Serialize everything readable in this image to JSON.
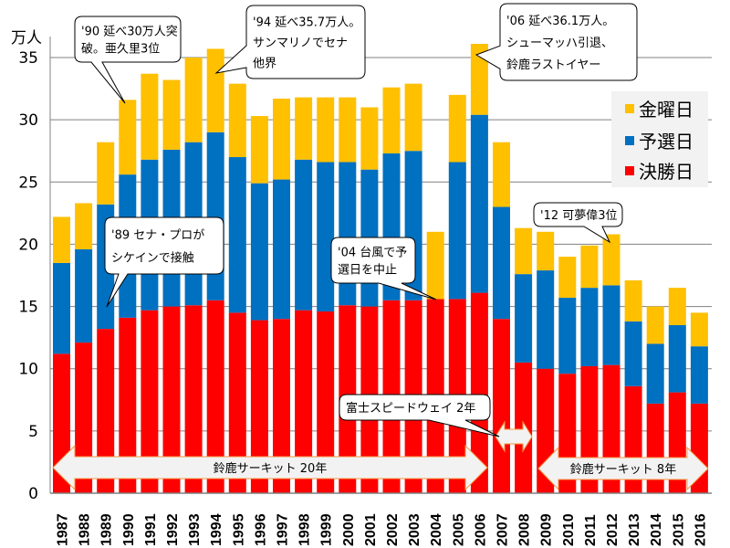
{
  "chart_data": {
    "type": "bar",
    "stacked": true,
    "ylabel": "万人",
    "ylim": [
      0,
      35
    ],
    "yticks": [
      "0",
      "5",
      "10",
      "15",
      "20",
      "25",
      "30",
      "35"
    ],
    "grid": true,
    "legend_placement": "right",
    "categories": [
      "1987",
      "1988",
      "1989",
      "1990",
      "1991",
      "1992",
      "1993",
      "1994",
      "1995",
      "1996",
      "1997",
      "1998",
      "1999",
      "2000",
      "2001",
      "2002",
      "2003",
      "2004",
      "2005",
      "2006",
      "2007",
      "2008",
      "2009",
      "2010",
      "2011",
      "2012",
      "2013",
      "2014",
      "2015",
      "2016"
    ],
    "series": [
      {
        "name": "決勝日",
        "color": "#ff0000",
        "values": [
          11.2,
          12.1,
          13.2,
          14.1,
          14.7,
          15.0,
          15.1,
          15.5,
          14.5,
          13.9,
          14.0,
          14.7,
          14.6,
          15.1,
          15.0,
          15.5,
          15.5,
          15.6,
          15.6,
          16.1,
          14.0,
          10.5,
          10.0,
          9.6,
          10.2,
          10.3,
          8.6,
          7.2,
          8.1,
          7.2
        ]
      },
      {
        "name": "予選日",
        "color": "#0070c0",
        "values": [
          7.3,
          7.5,
          10.0,
          11.5,
          12.1,
          12.6,
          13.1,
          13.5,
          12.5,
          11.0,
          11.2,
          12.1,
          12.0,
          11.5,
          11.0,
          11.8,
          12.0,
          0,
          11.0,
          14.3,
          9.0,
          7.1,
          7.9,
          6.1,
          6.3,
          6.4,
          5.2,
          4.8,
          5.4,
          4.6
        ]
      },
      {
        "name": "金曜日",
        "color": "#ffc000",
        "values": [
          3.7,
          3.7,
          5.0,
          6.0,
          6.9,
          5.6,
          6.8,
          6.7,
          5.9,
          5.4,
          6.5,
          5.0,
          5.2,
          5.2,
          5.0,
          5.3,
          5.4,
          5.4,
          5.4,
          5.7,
          5.2,
          3.7,
          3.1,
          3.3,
          3.4,
          4.1,
          3.3,
          3.0,
          3.0,
          2.7
        ]
      }
    ],
    "legend": [
      "金曜日",
      "予選日",
      "決勝日"
    ],
    "annotations": [
      {
        "lines": [
          "'90 延べ30万人突",
          "破。亜久里3位"
        ]
      },
      {
        "lines": [
          "'94 延べ35.7万人。",
          "サンマリノでセナ",
          "他界"
        ]
      },
      {
        "lines": [
          "'06 延べ36.1万人。",
          "シューマッハ引退、",
          "鈴鹿ラストイヤー"
        ]
      },
      {
        "lines": [
          "'89 セナ・プロが",
          "シケインで接触"
        ]
      },
      {
        "lines": [
          "'04 台風で予",
          "選日を中止"
        ]
      },
      {
        "lines": [
          "富士スピードウェイ 2年"
        ]
      },
      {
        "lines": [
          "'12 可夢偉3位"
        ]
      }
    ],
    "periods": [
      "鈴鹿サーキット 20年",
      "鈴鹿サーキット 8年"
    ]
  }
}
